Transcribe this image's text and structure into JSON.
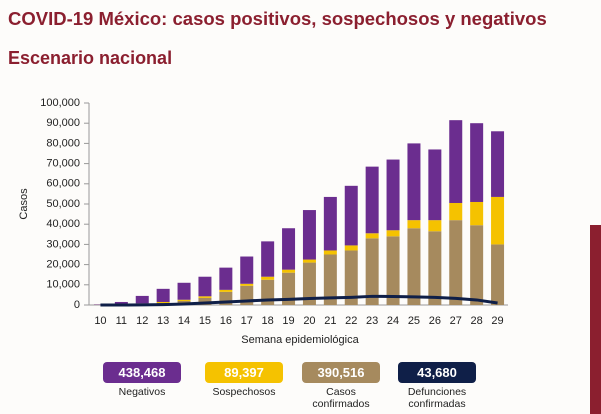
{
  "chart_data": {
    "type": "bar",
    "stacked": true,
    "title": "COVID-19 México: casos positivos, sospechosos y negativos",
    "subtitle": "Escenario nacional",
    "y_label": "Casos",
    "x_label": "Semana epidemiológica",
    "categories": [
      10,
      11,
      12,
      13,
      14,
      15,
      16,
      17,
      18,
      19,
      20,
      21,
      22,
      23,
      24,
      25,
      26,
      27,
      28,
      29
    ],
    "ylim": [
      0,
      100000
    ],
    "yticks": [
      0,
      {
        "value": 10000,
        "label": "10,000"
      },
      {
        "value": 20000,
        "label": "20,000"
      },
      {
        "value": 30000,
        "label": "30,000"
      },
      {
        "value": 40000,
        "label": "40,000"
      },
      {
        "value": 50000,
        "label": "50,000"
      },
      {
        "value": 60000,
        "label": "60,000"
      },
      {
        "value": 70000,
        "label": "70,000"
      },
      {
        "value": 80000,
        "label": "80,000"
      },
      {
        "value": 90000,
        "label": "90,000"
      },
      {
        "value": 100000,
        "label": "100,000"
      }
    ],
    "series": [
      {
        "name": "Negativos",
        "color": "#6b2d8f",
        "kind": "bar",
        "total": {
          "value": 438468,
          "label": "438,468"
        },
        "values": [
          200,
          1200,
          3700,
          6500,
          8400,
          9700,
          11000,
          13500,
          17500,
          20500,
          24500,
          26500,
          29500,
          33000,
          35000,
          38000,
          35000,
          41000,
          39000,
          32500
        ]
      },
      {
        "name": "Sospechosos",
        "color": "#f5c200",
        "kind": "bar",
        "total": {
          "value": 89397,
          "label": "89,397"
        },
        "values": [
          50,
          100,
          300,
          500,
          600,
          800,
          1000,
          1000,
          1500,
          1500,
          1500,
          2000,
          2500,
          2500,
          3000,
          4000,
          5500,
          8500,
          11500,
          23500
        ]
      },
      {
        "name": "Casos confirmados",
        "color": "#a68a5e",
        "kind": "bar",
        "total": {
          "value": 390516,
          "label": "390,516"
        },
        "values": [
          50,
          200,
          500,
          1000,
          2000,
          3500,
          6500,
          9500,
          12500,
          16000,
          21000,
          25000,
          27000,
          33000,
          34000,
          38000,
          36500,
          42000,
          39500,
          30000
        ]
      },
      {
        "name": "Defunciones confirmadas",
        "color": "#0f1f48",
        "kind": "line",
        "total": {
          "value": 43680,
          "label": "43,680"
        },
        "values": [
          0,
          10,
          50,
          200,
          500,
          1000,
          1500,
          2000,
          2500,
          2800,
          3200,
          3500,
          3800,
          4300,
          4200,
          4000,
          3800,
          3300,
          2500,
          1000
        ]
      }
    ]
  }
}
